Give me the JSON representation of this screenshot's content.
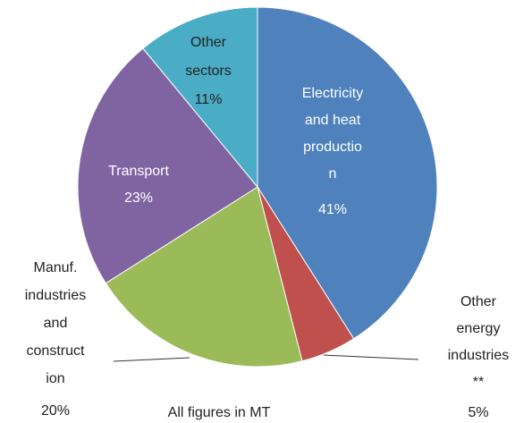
{
  "chart_data": {
    "type": "pie",
    "categories": [
      [
        "Electricity",
        "and heat",
        "productio",
        "n"
      ],
      [
        "Other",
        "energy",
        "industries",
        "**"
      ],
      [
        "Manuf.",
        "industries",
        "and",
        "construct",
        "ion"
      ],
      [
        "Transport"
      ],
      [
        "Other",
        "sectors"
      ]
    ],
    "values": [
      41,
      5,
      20,
      23,
      11
    ],
    "value_labels": [
      "41%",
      "5%",
      "20%",
      "23%",
      "11%"
    ],
    "colors": [
      "#4f81bd",
      "#c0504d",
      "#9bbb59",
      "#8064a2",
      "#4bacc6"
    ],
    "note": "All figures in MT"
  }
}
